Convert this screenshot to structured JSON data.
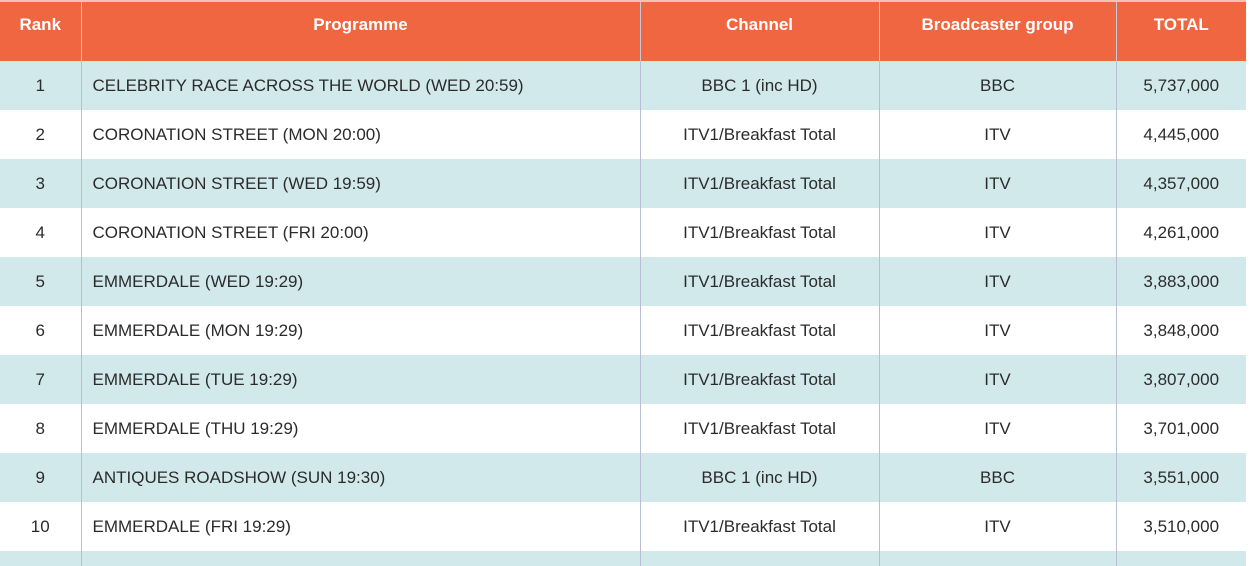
{
  "headers": {
    "rank": "Rank",
    "programme": "Programme",
    "channel": "Channel",
    "group": "Broadcaster group",
    "total": "TOTAL"
  },
  "rows": [
    {
      "rank": "1",
      "programme": "CELEBRITY RACE ACROSS THE WORLD (WED 20:59)",
      "channel": "BBC 1 (inc HD)",
      "group": "BBC",
      "total": "5,737,000"
    },
    {
      "rank": "2",
      "programme": "CORONATION STREET (MON 20:00)",
      "channel": "ITV1/Breakfast Total",
      "group": "ITV",
      "total": "4,445,000"
    },
    {
      "rank": "3",
      "programme": "CORONATION STREET (WED 19:59)",
      "channel": "ITV1/Breakfast Total",
      "group": "ITV",
      "total": "4,357,000"
    },
    {
      "rank": "4",
      "programme": "CORONATION STREET (FRI 20:00)",
      "channel": "ITV1/Breakfast Total",
      "group": "ITV",
      "total": "4,261,000"
    },
    {
      "rank": "5",
      "programme": "EMMERDALE (WED 19:29)",
      "channel": "ITV1/Breakfast Total",
      "group": "ITV",
      "total": "3,883,000"
    },
    {
      "rank": "6",
      "programme": "EMMERDALE (MON 19:29)",
      "channel": "ITV1/Breakfast Total",
      "group": "ITV",
      "total": "3,848,000"
    },
    {
      "rank": "7",
      "programme": "EMMERDALE (TUE 19:29)",
      "channel": "ITV1/Breakfast Total",
      "group": "ITV",
      "total": "3,807,000"
    },
    {
      "rank": "8",
      "programme": "EMMERDALE (THU 19:29)",
      "channel": "ITV1/Breakfast Total",
      "group": "ITV",
      "total": "3,701,000"
    },
    {
      "rank": "9",
      "programme": "ANTIQUES ROADSHOW (SUN 19:30)",
      "channel": "BBC 1 (inc HD)",
      "group": "BBC",
      "total": "3,551,000"
    },
    {
      "rank": "10",
      "programme": "EMMERDALE (FRI 19:29)",
      "channel": "ITV1/Breakfast Total",
      "group": "ITV",
      "total": "3,510,000"
    }
  ],
  "colors": {
    "header_bg": "#ef6640",
    "header_text": "#ffffff",
    "row_alt_bg": "#d2e9ec",
    "row_bg": "#ffffff"
  }
}
